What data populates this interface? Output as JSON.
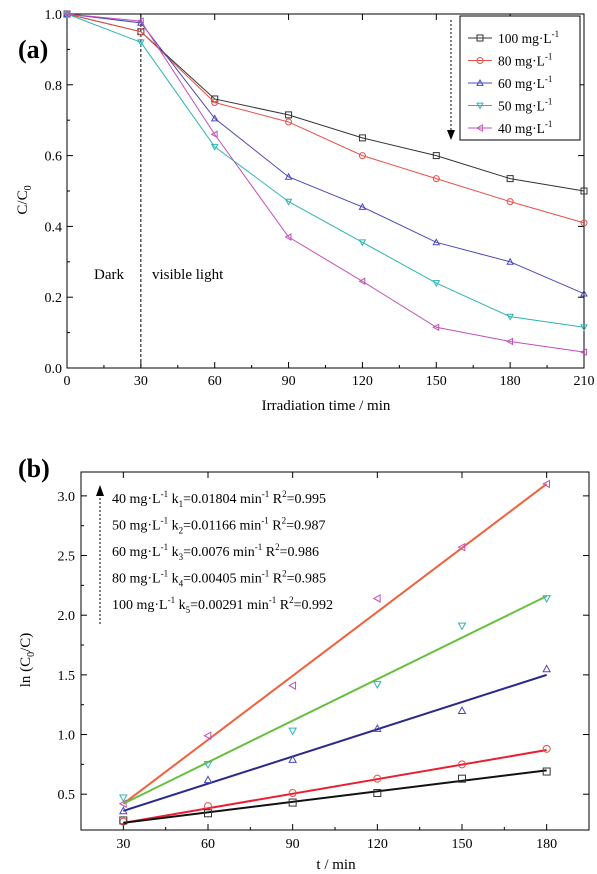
{
  "chart_data": [
    {
      "panel_label": "(a)",
      "type": "line",
      "xlabel": "Irradiation time / min",
      "ylabel": "C/C",
      "ylabel_sub": "0",
      "xlim": [
        0,
        210
      ],
      "ylim": [
        0.0,
        1.0
      ],
      "xticks": [
        "0",
        "30",
        "60",
        "90",
        "120",
        "150",
        "180",
        "210"
      ],
      "yticks": [
        "0.0",
        "0.2",
        "0.4",
        "0.6",
        "0.8",
        "1.0"
      ],
      "grid": false,
      "legend_position": "top-right",
      "x": [
        0,
        30,
        60,
        90,
        120,
        150,
        180,
        210
      ],
      "series": [
        {
          "name": "100 mg·L",
          "sup": "-1",
          "color": "#333333",
          "marker": "square",
          "values": [
            1.0,
            0.95,
            0.76,
            0.715,
            0.65,
            0.6,
            0.535,
            0.5
          ]
        },
        {
          "name": "80 mg·L",
          "sup": "-1",
          "color": "#e8504a",
          "marker": "circle",
          "values": [
            1.0,
            0.95,
            0.75,
            0.695,
            0.6,
            0.535,
            0.47,
            0.41
          ]
        },
        {
          "name": "60 mg·L",
          "sup": "-1",
          "color": "#4848b8",
          "marker": "triangle-up",
          "values": [
            1.0,
            0.975,
            0.705,
            0.54,
            0.455,
            0.355,
            0.3,
            0.21
          ]
        },
        {
          "name": "50 mg·L",
          "sup": "-1",
          "color": "#2fb3b3",
          "marker": "triangle-down",
          "values": [
            1.0,
            0.92,
            0.625,
            0.47,
            0.355,
            0.24,
            0.145,
            0.115
          ]
        },
        {
          "name": "40 mg·L",
          "sup": "-1",
          "color": "#c050b8",
          "marker": "triangle-left",
          "values": [
            1.0,
            0.98,
            0.66,
            0.37,
            0.245,
            0.115,
            0.075,
            0.045
          ]
        }
      ],
      "annotations": [
        {
          "text": "Dark"
        },
        {
          "text": "visible light"
        }
      ],
      "dashed_vertical_line_x": 30
    },
    {
      "panel_label": "(b)",
      "type": "scatter",
      "xlabel": "t / min",
      "ylabel": "ln (C",
      "ylabel_sub": "0",
      "ylabel_end": "/C)",
      "xlim": [
        15,
        195
      ],
      "ylim": [
        0.2,
        3.2
      ],
      "xticks": [
        "30",
        "60",
        "90",
        "120",
        "150",
        "180"
      ],
      "yticks": [
        "0.5",
        "1.0",
        "1.5",
        "2.0",
        "2.5",
        "3.0"
      ],
      "grid": false,
      "x": [
        30,
        60,
        90,
        120,
        150,
        180
      ],
      "series": [
        {
          "name": "40 mg·L",
          "color": "#c050b8",
          "line_color": "#f0603a",
          "marker": "triangle-left",
          "values": [
            0.42,
            0.99,
            1.41,
            2.14,
            2.57,
            3.1
          ],
          "fit": [
            [
              30,
              0.42
            ],
            [
              180,
              3.1
            ]
          ]
        },
        {
          "name": "50 mg·L",
          "color": "#2fb3b3",
          "line_color": "#66c040",
          "marker": "triangle-down",
          "values": [
            0.47,
            0.75,
            1.03,
            1.42,
            1.91,
            2.14
          ],
          "fit": [
            [
              30,
              0.42
            ],
            [
              180,
              2.16
            ]
          ]
        },
        {
          "name": "60 mg·L",
          "color": "#4848b8",
          "line_color": "#2a2a8a",
          "marker": "triangle-up",
          "values": [
            0.36,
            0.62,
            0.79,
            1.05,
            1.2,
            1.55
          ],
          "fit": [
            [
              30,
              0.36
            ],
            [
              180,
              1.5
            ]
          ]
        },
        {
          "name": "80 mg·L",
          "color": "#e8504a",
          "line_color": "#e82030",
          "marker": "circle",
          "values": [
            0.27,
            0.4,
            0.51,
            0.63,
            0.75,
            0.88
          ],
          "fit": [
            [
              30,
              0.26
            ],
            [
              180,
              0.87
            ]
          ]
        },
        {
          "name": "100 mg·L",
          "color": "#333333",
          "line_color": "#111111",
          "marker": "square",
          "values": [
            0.28,
            0.34,
            0.43,
            0.51,
            0.63,
            0.69
          ],
          "fit": [
            [
              30,
              0.26
            ],
            [
              180,
              0.7
            ]
          ]
        }
      ],
      "annotation_lines": [
        {
          "conc": "40 mg·L",
          "sup": "-1",
          "k": "k",
          "ksub": "1",
          "kval": "=0.01804 min",
          "ksup": "-1",
          "r2": "R",
          "r2sup": "2",
          "r2val": "=0.995"
        },
        {
          "conc": "50 mg·L",
          "sup": "-1",
          "k": "k",
          "ksub": "2",
          "kval": "=0.01166 min",
          "ksup": "-1",
          "r2": "R",
          "r2sup": "2",
          "r2val": "=0.987"
        },
        {
          "conc": "60 mg·L",
          "sup": "-1",
          "k": "k",
          "ksub": "3",
          "kval": "=0.0076   min",
          "ksup": "-1",
          "r2": "R",
          "r2sup": "2",
          "r2val": "=0.986"
        },
        {
          "conc": "80 mg·L",
          "sup": "-1",
          "k": "k",
          "ksub": "4",
          "kval": "=0.00405 min",
          "ksup": "-1",
          "r2": " R",
          "r2sup": "2",
          "r2val": "=0.985"
        },
        {
          "conc": "100 mg·L",
          "sup": "-1",
          "k": "k",
          "ksub": "5",
          "kval": "=0.00291 min",
          "ksup": "-1",
          "r2": "R",
          "r2sup": "2",
          "r2val": "=0.992"
        }
      ]
    }
  ]
}
